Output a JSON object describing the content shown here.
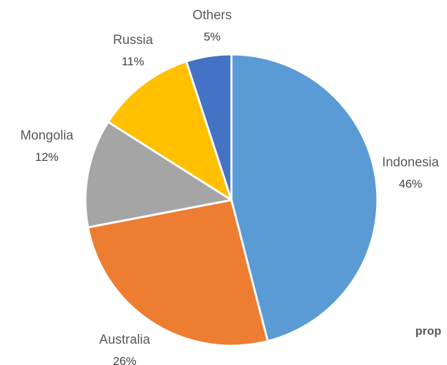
{
  "chart_data": {
    "type": "pie",
    "title": "",
    "categories": [
      "Indonesia",
      "Australia",
      "Mongolia",
      "Russia",
      "Others"
    ],
    "values": [
      46,
      26,
      12,
      11,
      5
    ],
    "value_labels": [
      "46%",
      "26%",
      "12%",
      "11%",
      "5%"
    ],
    "colors": [
      "#5B9BD5",
      "#ED7D31",
      "#A5A5A5",
      "#FFC000",
      "#4472C4"
    ],
    "start_angle_deg": 0,
    "direction": "clockwise",
    "legend": "none",
    "data_labels": "outside"
  },
  "page": {
    "stray_text": "prop"
  }
}
